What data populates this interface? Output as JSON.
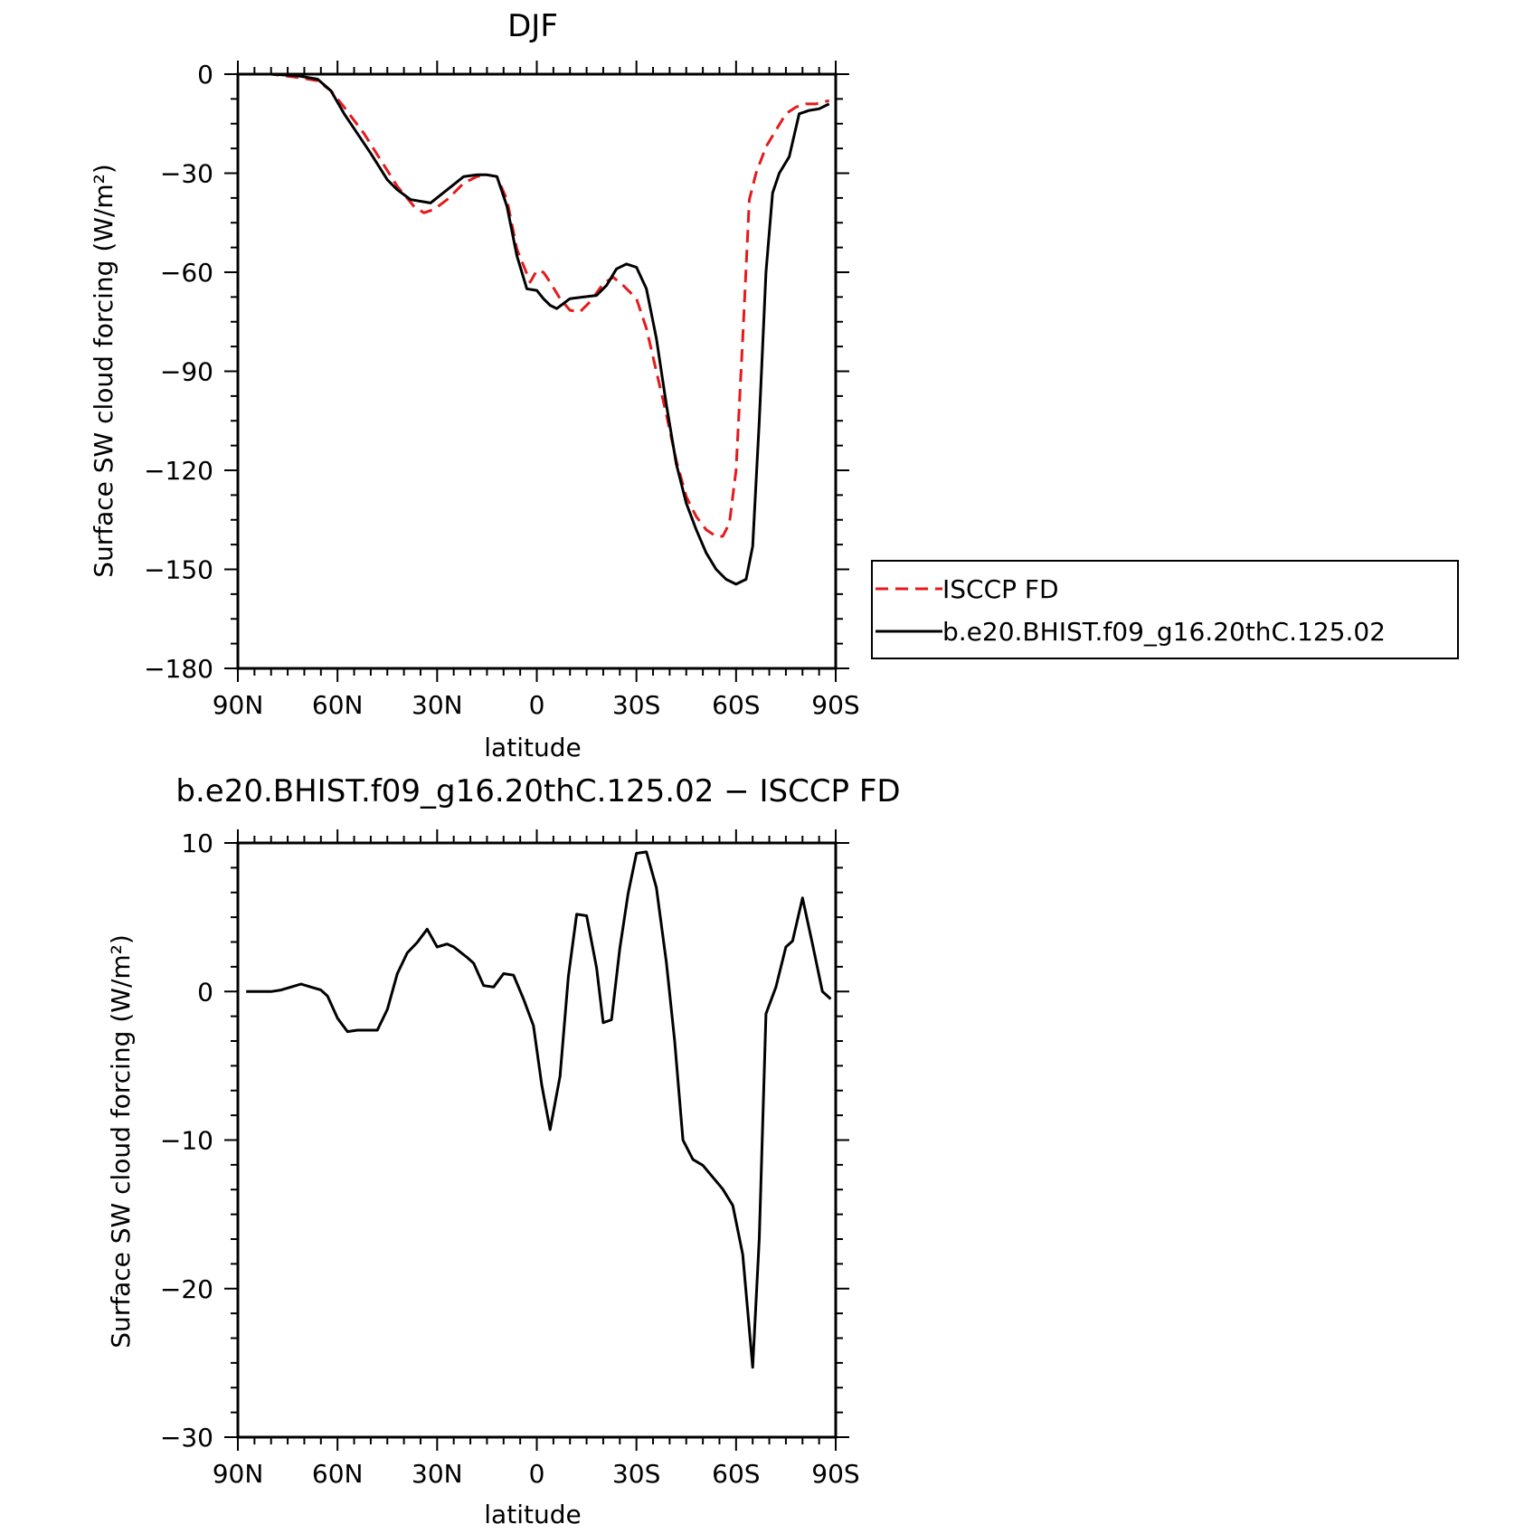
{
  "chart_data": [
    {
      "type": "line",
      "title": "DJF",
      "xlabel": "latitude",
      "ylabel": "Surface SW cloud forcing (W/m²)",
      "xlim": [
        90,
        -90
      ],
      "ylim": [
        -180,
        0
      ],
      "x_tick_values": [
        90,
        60,
        30,
        0,
        -30,
        -60,
        -90
      ],
      "x_tick_labels": [
        "90N",
        "60N",
        "30N",
        "0",
        "30S",
        "60S",
        "90S"
      ],
      "y_tick_values": [
        0,
        -30,
        -60,
        -90,
        -120,
        -150,
        -180
      ],
      "y_tick_labels": [
        "0",
        "−30",
        "−60",
        "−90",
        "−120",
        "−150",
        "−180"
      ],
      "legend_position": "right",
      "series": [
        {
          "name": "ISCCP FD",
          "color": "#e41a1c",
          "dash": "dashed",
          "x": [
            87.5,
            80,
            72,
            66,
            62,
            58,
            52,
            47,
            42,
            37,
            34,
            31,
            27,
            22,
            18,
            15,
            12,
            9,
            6,
            2,
            0,
            -2,
            -4,
            -7,
            -10,
            -13,
            -16,
            -20,
            -23,
            -26,
            -30,
            -33,
            -36,
            -39,
            -42,
            -45,
            -48,
            -51,
            -54,
            -56,
            -58,
            -60,
            -62,
            -64,
            -66,
            -69,
            -72,
            -75,
            -78,
            -81,
            -84,
            -88
          ],
          "y": [
            0,
            0,
            -1,
            -2,
            -5,
            -10,
            -18,
            -26,
            -34,
            -40,
            -42,
            -41,
            -38,
            -33,
            -31,
            -30.5,
            -31,
            -38,
            -53,
            -63,
            -59.5,
            -60,
            -63,
            -68,
            -71.5,
            -72,
            -69,
            -63.5,
            -61.5,
            -64,
            -68,
            -77,
            -90,
            -103,
            -117,
            -128,
            -134,
            -138,
            -140,
            -140,
            -136,
            -120,
            -80,
            -38,
            -30,
            -22,
            -17,
            -12,
            -10,
            -9,
            -9,
            -8
          ]
        },
        {
          "name": "b.e20.BHIST.f09_g16.20thC.125.02",
          "color": "#000000",
          "dash": "solid",
          "x": [
            87.5,
            80,
            72,
            66,
            62,
            58,
            54,
            50,
            45,
            42,
            38,
            32,
            27,
            22,
            18,
            15,
            12,
            9,
            6,
            3,
            0,
            -2,
            -4,
            -6,
            -10,
            -14,
            -18,
            -21,
            -24,
            -27,
            -30,
            -33,
            -36,
            -39,
            -42,
            -45,
            -48,
            -51,
            -54,
            -57,
            -60,
            -63,
            -65,
            -67,
            -69,
            -71,
            -73,
            -76,
            -79,
            -82,
            -85,
            -88
          ],
          "y": [
            0,
            0,
            -0.5,
            -1.5,
            -5,
            -12,
            -18,
            -24,
            -32,
            -35,
            -38,
            -39,
            -35,
            -31,
            -30.5,
            -30.5,
            -31,
            -40,
            -55,
            -65,
            -65.5,
            -68,
            -70,
            -71,
            -68,
            -67.5,
            -67,
            -64,
            -59,
            -57.5,
            -58.5,
            -65,
            -80,
            -100,
            -118,
            -130,
            -138,
            -145,
            -150,
            -153,
            -154.5,
            -153,
            -143,
            -105,
            -60,
            -36,
            -30,
            -25,
            -12,
            -11,
            -10.5,
            -9
          ]
        }
      ]
    },
    {
      "type": "line",
      "title": "b.e20.BHIST.f09_g16.20thC.125.02 − ISCCP FD",
      "xlabel": "latitude",
      "ylabel": "Surface SW cloud forcing (W/m²)",
      "xlim": [
        90,
        -90
      ],
      "ylim": [
        -30,
        10
      ],
      "x_tick_values": [
        90,
        60,
        30,
        0,
        -30,
        -60,
        -90
      ],
      "x_tick_labels": [
        "90N",
        "60N",
        "30N",
        "0",
        "30S",
        "60S",
        "90S"
      ],
      "y_tick_values": [
        10,
        0,
        -10,
        -20,
        -30
      ],
      "y_tick_labels": [
        "10",
        "0",
        "−10",
        "−20",
        "−30"
      ],
      "series": [
        {
          "color": "#000000",
          "dash": "solid",
          "x": [
            87.5,
            84,
            80,
            77,
            74,
            71,
            68,
            65,
            63,
            60,
            57,
            54,
            51,
            48,
            45,
            42,
            39,
            36,
            33,
            30,
            27,
            25,
            21,
            19,
            16,
            13,
            10,
            7,
            4,
            1,
            -1.5,
            -4,
            -7,
            -9.5,
            -12,
            -15,
            -18,
            -20,
            -22.5,
            -25,
            -27.5,
            -30,
            -33,
            -36,
            -39,
            -41.5,
            -44,
            -47,
            -50,
            -53,
            -56,
            -59,
            -62,
            -65,
            -67,
            -69,
            -72,
            -75,
            -77,
            -80,
            -83,
            -86,
            -88.5
          ],
          "y": [
            0,
            0,
            0,
            0.1,
            0.3,
            0.5,
            0.3,
            0.1,
            -0.3,
            -1.8,
            -2.7,
            -2.6,
            -2.6,
            -2.6,
            -1.2,
            1.2,
            2.6,
            3.3,
            4.2,
            3.0,
            3.2,
            3.0,
            2.3,
            1.9,
            0.4,
            0.3,
            1.2,
            1.1,
            -0.5,
            -2.3,
            -6.3,
            -9.3,
            -5.7,
            1.0,
            5.2,
            5.1,
            1.6,
            -2.1,
            -1.9,
            2.9,
            6.6,
            9.3,
            9.4,
            7.0,
            2.0,
            -3.3,
            -10.0,
            -11.3,
            -11.7,
            -12.5,
            -13.3,
            -14.4,
            -17.7,
            -25.3,
            -16.6,
            -1.5,
            0.3,
            3.0,
            3.4,
            6.3,
            3.2,
            0.0,
            -0.5
          ]
        }
      ]
    }
  ]
}
